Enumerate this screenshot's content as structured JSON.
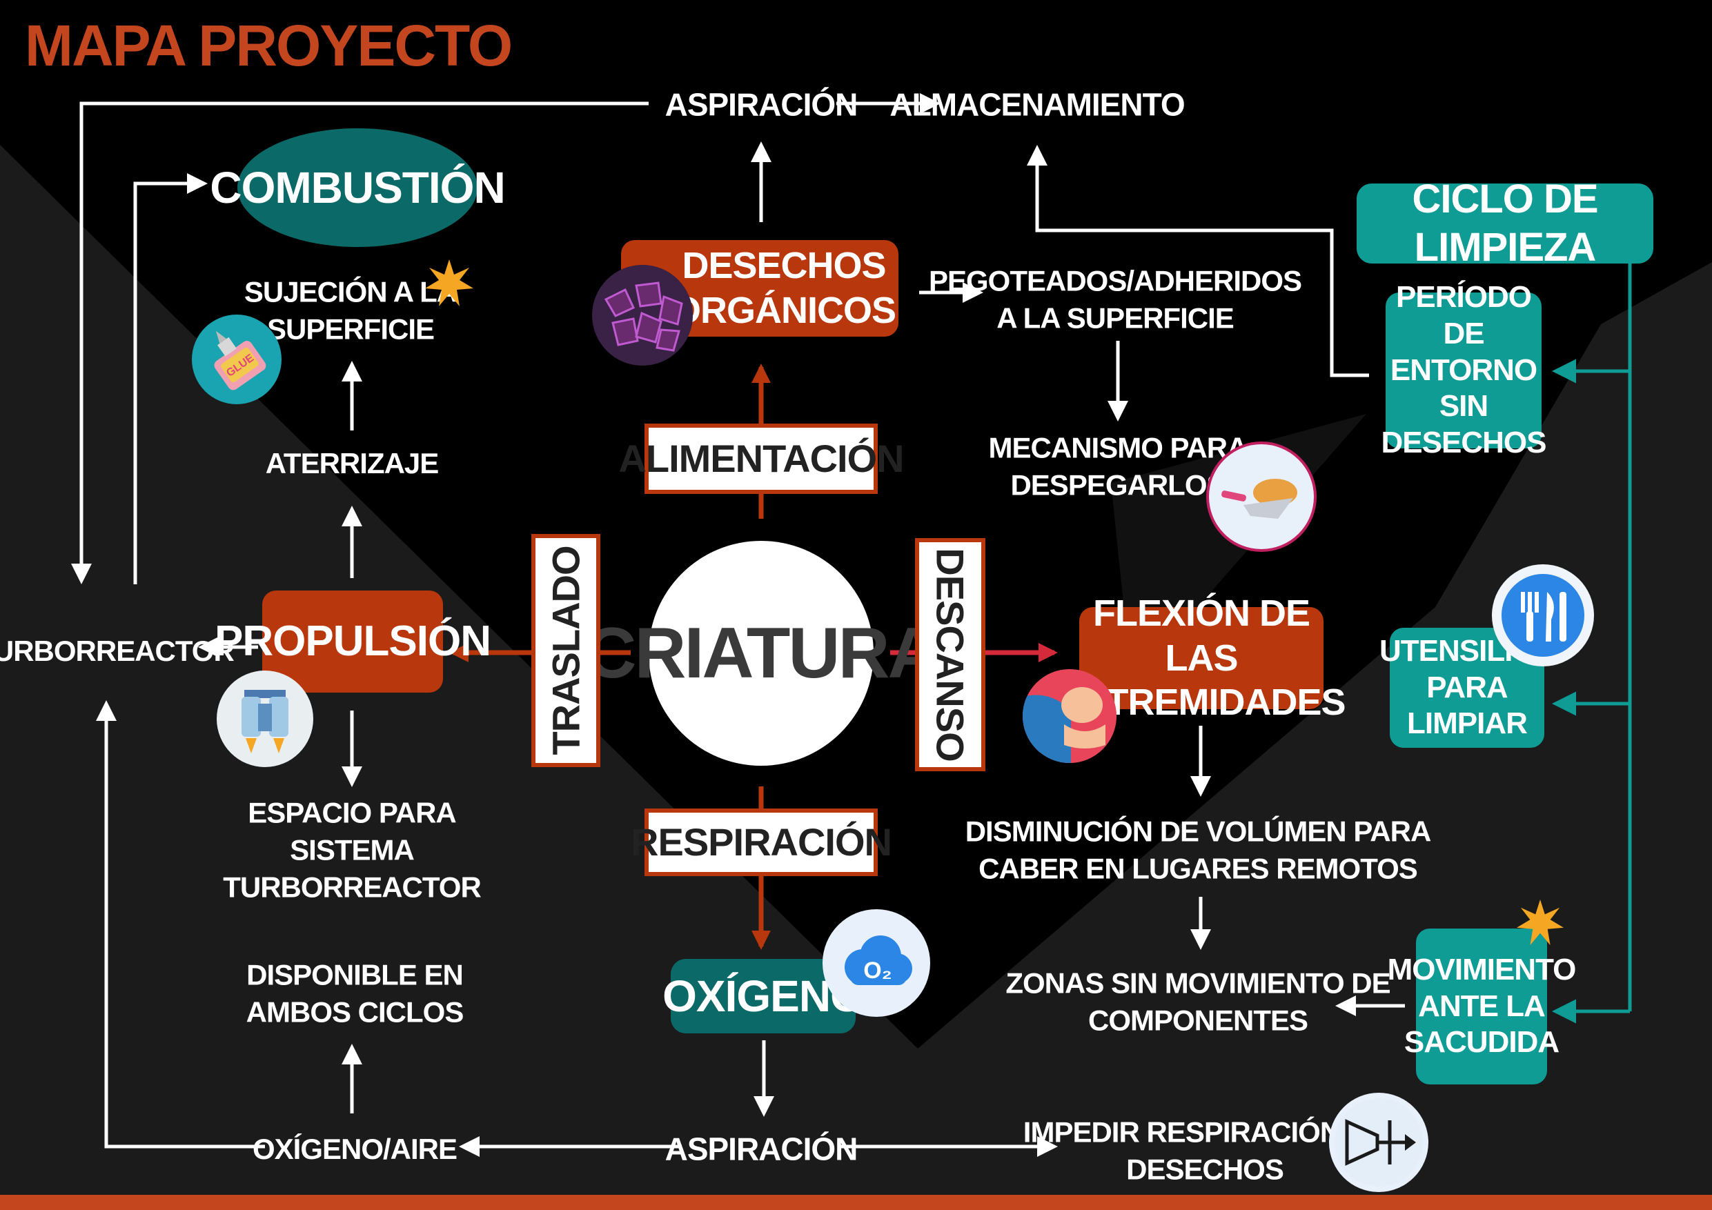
{
  "title": "MAPA PROYECTO",
  "center": "CRIATURA",
  "branches": {
    "alimentacion": "ALIMENTACIÓN",
    "respiracion": "RESPIRACIÓN",
    "traslado": "TRASLADO",
    "descanso": "DESCANSO"
  },
  "nodes": {
    "desechos": "DESECHOS\nORGÁNICOS",
    "propulsion": "PROPULSIÓN",
    "flexion": "FLEXIÓN DE LAS\nEXTREMIDADES",
    "oxigeno": "OXÍGENO",
    "combustion": "COMBUSTIÓN",
    "ciclo": "CICLO DE LIMPIEZA",
    "periodo": "PERÍODO DE\nENTORNO SIN\nDESECHOS",
    "utensilios": "UTENSILIOS\nPARA LIMPIAR",
    "movimiento": "MOVIMIENTO\nANTE LA\nSACUDIDA"
  },
  "labels": {
    "aspiracion_top": "ASPIRACIÓN",
    "almacenamiento": "ALMACENAMIENTO",
    "pegoteados": "PEGOTEADOS/ADHERIDOS\nA LA SUPERFICIE",
    "mecanismo": "MECANISMO PARA\nDESPEGARLOS",
    "sujecion": "SUJECIÓN A LA\nSUPERFICIE",
    "aterrizaje": "ATERRIZAJE",
    "turborreactor": "TURBORREACTOR",
    "espacio": "ESPACIO PARA\nSISTEMA\nTURBORREACTOR",
    "disponible": "DISPONIBLE EN\nAMBOS CICLOS",
    "oxigeno_aire": "OXÍGENO/AIRE",
    "aspiracion_bottom": "ASPIRACIÓN",
    "impedir": "IMPEDIR RESPIRACIÓN DE\nDESECHOS",
    "disminucion": "DISMINUCIÓN DE VOLÚMEN PARA\nCABER EN LUGARES REMOTOS",
    "zonas": "ZONAS SIN MOVIMIENTO DE\nCOMPONENTES"
  },
  "icons": {
    "desechos": "organic-waste-icon",
    "glue": "glue-icon",
    "jetpack": "jetpack-icon",
    "trowel": "trowel-icon",
    "muscle": "muscle-arm-icon",
    "oxygen": "oxygen-cloud-icon",
    "utensils": "utensils-icon",
    "filter": "filter-icon",
    "star_sujecion": "star-icon",
    "star_movimiento": "star-icon",
    "glue_text": "GLUE",
    "oxygen_text": "O₂"
  },
  "colors": {
    "accent_orange": "#b8370c",
    "teal": "#0f9c94",
    "dark_teal": "#0b6a68",
    "descanso_red": "#d42a3a"
  }
}
